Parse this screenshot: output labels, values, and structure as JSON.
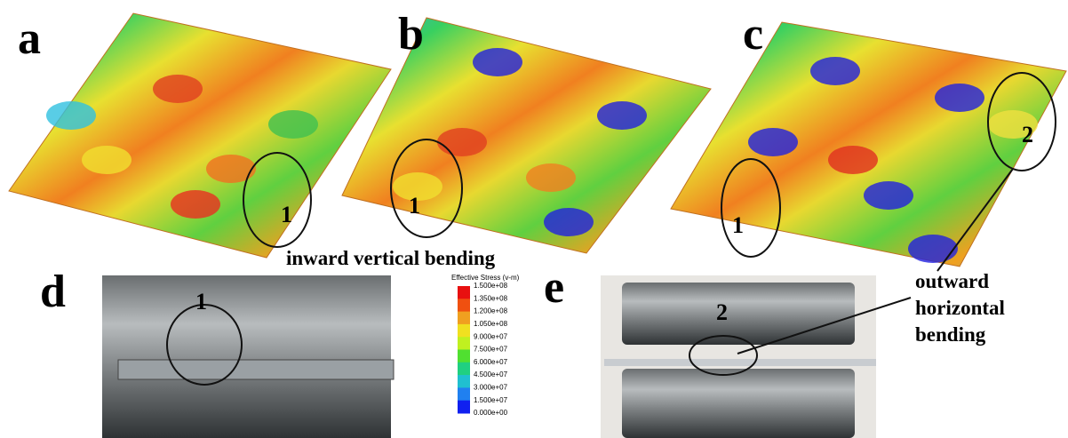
{
  "panel_labels": [
    "a",
    "b",
    "c",
    "d",
    "e"
  ],
  "markers": [
    "1",
    "1",
    "1",
    "1",
    "2",
    "2"
  ],
  "annotations": {
    "inward": "inward vertical bending",
    "outward": [
      "outward",
      "horizontal",
      "bending"
    ]
  },
  "colorbar": {
    "title": "Effective Stress (v-m)",
    "ticks": [
      "1.500e+08",
      "1.350e+08",
      "1.200e+08",
      "1.050e+08",
      "9.000e+07",
      "7.500e+07",
      "6.000e+07",
      "4.500e+07",
      "3.000e+07",
      "1.500e+07",
      "0.000e+00"
    ]
  }
}
